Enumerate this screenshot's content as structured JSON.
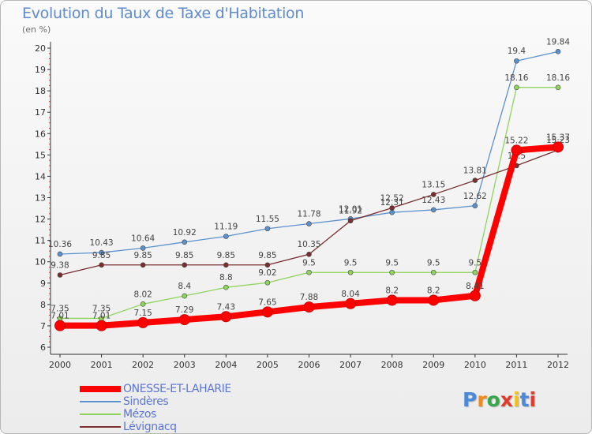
{
  "title": "Evolution du Taux de Taxe d'Habitation",
  "unit": "(en %)",
  "brand": {
    "text": "Proxiti",
    "letter_colors": [
      "#4a8ad8",
      "#f08a1c",
      "#3aa64a",
      "#e03c2c",
      "#f2c21b",
      "#4a8ad8",
      "#e03c2c"
    ]
  },
  "chart_data": {
    "type": "line",
    "x": [
      "2000",
      "2001",
      "2002",
      "2003",
      "2004",
      "2005",
      "2006",
      "2007",
      "2008",
      "2009",
      "2010",
      "2011",
      "2012"
    ],
    "ylim": [
      6,
      20
    ],
    "yticks": [
      "6",
      "7",
      "8",
      "9",
      "10",
      "11",
      "12",
      "13",
      "14",
      "15",
      "16",
      "17",
      "18",
      "19",
      "20"
    ],
    "grid": false,
    "legend_position": "bottom-left",
    "series": [
      {
        "name": "Sindères",
        "color": "#5a92cf",
        "values": [
          10.36,
          10.43,
          10.64,
          10.92,
          11.19,
          11.55,
          11.78,
          12.01,
          12.31,
          12.43,
          12.62,
          19.4,
          19.84
        ],
        "labels": [
          "10.36",
          "10.43",
          "10.64",
          "10.92",
          "11.19",
          "11.55",
          "11.78",
          "12.01",
          "12.31",
          "12.43",
          "12.62",
          "19.4",
          "19.84"
        ]
      },
      {
        "name": "Mézos",
        "color": "#8fd45d",
        "values": [
          7.35,
          7.35,
          8.02,
          8.4,
          8.8,
          9.02,
          9.5,
          9.5,
          9.5,
          9.5,
          9.5,
          18.16,
          18.16
        ],
        "labels": [
          "7.35",
          "7.35",
          "8.02",
          "8.4",
          "8.8",
          "9.02",
          "9.5",
          "9.5",
          "9.5",
          "9.5",
          "9.5",
          "18.16",
          "18.16"
        ]
      },
      {
        "name": "Lévignacq",
        "color": "#7a2e2e",
        "values": [
          9.38,
          9.85,
          9.85,
          9.85,
          9.85,
          9.85,
          10.35,
          11.92,
          12.52,
          13.15,
          13.81,
          14.5,
          15.23
        ],
        "labels": [
          "9.38",
          "9.85",
          "9.85",
          "9.85",
          "9.85",
          "9.85",
          "10.35",
          "11.92",
          "12.52",
          "13.15",
          "13.81",
          "14.5",
          "15.23"
        ]
      },
      {
        "name": "ONESSE-ET-LAHARIE",
        "color": "#ff0000",
        "values": [
          7.01,
          7.01,
          7.15,
          7.29,
          7.43,
          7.65,
          7.88,
          8.04,
          8.2,
          8.2,
          8.41,
          15.22,
          15.37
        ],
        "labels": [
          "7.01",
          "7.01",
          "7.15",
          "7.29",
          "7.43",
          "7.65",
          "7.88",
          "8.04",
          "8.2",
          "8.2",
          "8.41",
          "15.22",
          "15.37"
        ]
      }
    ],
    "legend_order": [
      "ONESSE-ET-LAHARIE",
      "Sindères",
      "Mézos",
      "Lévignacq"
    ]
  }
}
